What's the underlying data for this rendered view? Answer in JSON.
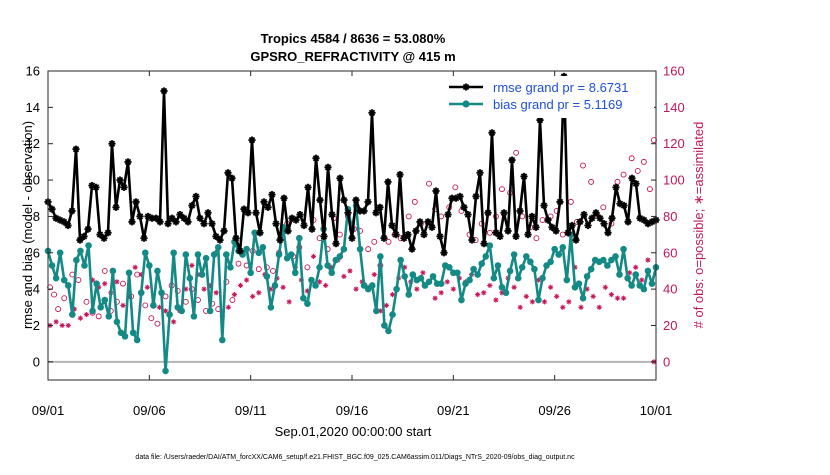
{
  "chart_data": {
    "type": "line",
    "title": [
      "Tropics 4584 / 8636 = 53.080%",
      "GPSRO_REFRACTIVITY @ 415 m"
    ],
    "xlabel": "Sep.01,2020 00:00:00 start",
    "ylabel_left": "rmse and bias (model - observation)",
    "ylabel_right": "# of obs: o=possible; ∗=assimilated",
    "footnote": "data file: /Users/raeder/DAI/ATM_forcXX/CAM6_setup/f.e21.FHIST_BGC.f09_025.CAM6assim.011/Diags_NTrS_2020-09/obs_diag_output.nc",
    "x_ticks": [
      "09/01",
      "09/06",
      "09/11",
      "09/16",
      "09/21",
      "09/26",
      "10/01"
    ],
    "y_left_ticks": [
      "0",
      "2",
      "4",
      "6",
      "8",
      "10",
      "12",
      "14",
      "16"
    ],
    "y_right_ticks": [
      "0",
      "20",
      "40",
      "60",
      "80",
      "100",
      "120",
      "140",
      "160"
    ],
    "ylim_left": [
      -1,
      16
    ],
    "ylim_right": [
      -10,
      160
    ],
    "xlim_days": [
      0,
      30
    ],
    "colors": {
      "rmse": "#000000",
      "bias": "#138a85",
      "obs": "#c8145a",
      "zero_line": "#b4b4b4",
      "legend_text": "#1f4fd8"
    },
    "legend": [
      {
        "label": "rmse grand pr = 8.6731",
        "series": "rmse"
      },
      {
        "label": "bias grand pr = 5.1169",
        "series": "bias"
      }
    ],
    "series": [
      {
        "name": "rmse",
        "marker": "star",
        "values": [
          8.8,
          8.4,
          7.9,
          7.8,
          7.7,
          7.5,
          8.3,
          11.7,
          6.7,
          6.9,
          7.3,
          9.7,
          9.6,
          7.0,
          6.8,
          7.1,
          12.0,
          8.5,
          10.0,
          9.6,
          11.0,
          7.7,
          8.8,
          8.0,
          6.8,
          8.0,
          7.9,
          7.9,
          7.7,
          14.9,
          7.6,
          7.9,
          7.7,
          8.1,
          7.9,
          7.7,
          8.6,
          9.1,
          7.9,
          7.6,
          8.2,
          7.6,
          6.9,
          6.7,
          7.2,
          10.4,
          10.1,
          6.8,
          6.1,
          8.4,
          8.2,
          12.2,
          8.2,
          7.1,
          8.8,
          8.5,
          9.2,
          7.6,
          6.7,
          9.0,
          7.2,
          7.9,
          7.8,
          8.1,
          7.5,
          9.6,
          7.3,
          11.2,
          8.9,
          6.9,
          10.7,
          8.1,
          6.5,
          10.1,
          8.9,
          8.2,
          6.8,
          8.9,
          8.3,
          8.3,
          8.8,
          13.7,
          8.2,
          8.5,
          6.8,
          9.9,
          7.5,
          7.0,
          10.3,
          6.8,
          7.0,
          6.2,
          7.2,
          7.7,
          7.0,
          7.7,
          7.4,
          9.4,
          6.9,
          6.0,
          8.1,
          9.0,
          9.0,
          9.1,
          8.5,
          8.1,
          6.7,
          9.1,
          10.4,
          6.5,
          8.2,
          12.6,
          7.1,
          6.9,
          8.2,
          7.2,
          11.1,
          6.9,
          8.3,
          10.2,
          7.0,
          8.0,
          7.4,
          13.3,
          8.6,
          7.8,
          7.4,
          7.2,
          8.8,
          15.7,
          7.1,
          7.5,
          6.7,
          7.7,
          8.1,
          7.5,
          7.9,
          8.2,
          7.9,
          7.6,
          7.1,
          7.9,
          9.6,
          8.7,
          8.6,
          7.7,
          10.1,
          9.8,
          7.9,
          7.8,
          7.6,
          7.7,
          7.8
        ]
      },
      {
        "name": "bias",
        "marker": "circle",
        "values": [
          6.1,
          5.3,
          4.6,
          6.0,
          4.5,
          4.2,
          2.6,
          5.6,
          6.1,
          5.3,
          6.4,
          2.8,
          4.3,
          3.0,
          3.4,
          2.5,
          5.0,
          2.2,
          1.6,
          1.4,
          4.9,
          1.6,
          1.2,
          3.8,
          6.0,
          5.3,
          3.1,
          5.0,
          3.8,
          -0.5,
          2.6,
          6.0,
          3.0,
          2.8,
          5.9,
          4.6,
          2.5,
          5.9,
          4.8,
          5.7,
          2.8,
          5.9,
          6.3,
          1.2,
          5.9,
          5.2,
          6.6,
          6.1,
          5.9,
          6.2,
          4.9,
          7.1,
          6.0,
          6.3,
          4.7,
          3.0,
          4.2,
          5.9,
          7.4,
          5.7,
          5.9,
          4.9,
          6.8,
          3.5,
          3.2,
          4.5,
          4.2,
          5.2,
          7.3,
          5.3,
          4.9,
          5.6,
          5.8,
          6.2,
          8.4,
          7.3,
          8.6,
          6.2,
          4.2,
          4.0,
          4.2,
          2.8,
          5.8,
          2.0,
          1.7,
          2.6,
          4.0,
          5.6,
          4.7,
          3.7,
          4.8,
          4.5,
          4.6,
          4.2,
          4.4,
          4.7,
          4.3,
          4.3,
          5.3,
          5.2,
          4.9,
          4.9,
          3.4,
          4.3,
          4.5,
          5.1,
          4.8,
          5.4,
          5.8,
          6.4,
          4.6,
          5.3,
          4.1,
          3.8,
          5.0,
          5.9,
          4.6,
          5.2,
          5.8,
          5.5,
          5.1,
          3.4,
          4.6,
          5.3,
          5.5,
          6.2,
          5.9,
          6.3,
          4.5,
          7.0,
          4.1,
          4.3,
          3.5,
          4.7,
          5.1,
          5.6,
          5.5,
          5.6,
          5.3,
          5.6,
          5.8,
          4.8,
          6.2,
          4.6,
          4.2,
          4.8,
          4.2,
          4.0,
          5.0,
          4.3,
          5.2
        ]
      },
      {
        "name": "possible",
        "marker": "open-circle",
        "axis": "right",
        "values": [
          [
            0.1,
            41
          ],
          [
            0.3,
            37
          ],
          [
            0.5,
            29
          ],
          [
            0.8,
            35
          ],
          [
            1.2,
            48
          ],
          [
            1.5,
            45
          ],
          [
            1.9,
            33
          ],
          [
            2.2,
            27
          ],
          [
            2.5,
            25
          ],
          [
            2.8,
            50
          ],
          [
            3.1,
            28
          ],
          [
            3.4,
            33
          ],
          [
            3.7,
            43
          ],
          [
            4.1,
            36
          ],
          [
            4.4,
            48
          ],
          [
            4.8,
            31
          ],
          [
            5.1,
            24
          ],
          [
            5.4,
            21
          ],
          [
            5.8,
            36
          ],
          [
            6.1,
            42
          ],
          [
            6.4,
            39
          ],
          [
            6.8,
            33
          ],
          [
            7.1,
            40
          ],
          [
            7.4,
            34
          ],
          [
            7.8,
            28
          ],
          [
            8.1,
            32
          ],
          [
            8.4,
            29
          ],
          [
            8.8,
            44
          ],
          [
            9.1,
            34
          ],
          [
            9.4,
            54
          ],
          [
            9.8,
            53
          ],
          [
            10.1,
            61
          ],
          [
            10.4,
            51
          ],
          [
            10.8,
            52
          ],
          [
            11.1,
            50
          ],
          [
            11.4,
            60
          ],
          [
            11.8,
            76
          ],
          [
            12.1,
            58
          ],
          [
            12.4,
            63
          ],
          [
            12.8,
            52
          ],
          [
            13.1,
            78
          ],
          [
            13.4,
            68
          ],
          [
            13.8,
            62
          ],
          [
            14.1,
            79
          ],
          [
            14.4,
            70
          ],
          [
            14.8,
            80
          ],
          [
            15.1,
            73
          ],
          [
            15.4,
            72
          ],
          [
            15.8,
            62
          ],
          [
            16.1,
            66
          ],
          [
            16.4,
            53
          ],
          [
            16.8,
            66
          ],
          [
            17.1,
            70
          ],
          [
            17.4,
            68
          ],
          [
            17.8,
            80
          ],
          [
            18.1,
            88
          ],
          [
            18.4,
            76
          ],
          [
            18.8,
            98
          ],
          [
            19.1,
            84
          ],
          [
            19.4,
            80
          ],
          [
            19.8,
            85
          ],
          [
            20.1,
            96
          ],
          [
            20.4,
            83
          ],
          [
            20.8,
            70
          ],
          [
            21.1,
            67
          ],
          [
            21.4,
            76
          ],
          [
            21.8,
            71
          ],
          [
            22.1,
            80
          ],
          [
            22.4,
            95
          ],
          [
            22.8,
            93
          ],
          [
            23.1,
            115
          ],
          [
            23.4,
            80
          ],
          [
            23.8,
            74
          ],
          [
            24.1,
            68
          ],
          [
            24.4,
            78
          ],
          [
            24.8,
            80
          ],
          [
            25.1,
            83
          ],
          [
            25.4,
            70
          ],
          [
            25.8,
            88
          ],
          [
            26.1,
            77
          ],
          [
            26.4,
            108
          ],
          [
            26.8,
            99
          ],
          [
            27.1,
            81
          ],
          [
            27.4,
            85
          ],
          [
            27.8,
            76
          ],
          [
            28.1,
            99
          ],
          [
            28.4,
            103
          ],
          [
            28.8,
            112
          ],
          [
            29.1,
            105
          ],
          [
            29.4,
            110
          ],
          [
            29.7,
            95
          ],
          [
            29.9,
            122
          ]
        ]
      },
      {
        "name": "assimilated",
        "marker": "asterisk",
        "axis": "right",
        "values": [
          [
            0.1,
            20
          ],
          [
            0.4,
            22
          ],
          [
            0.7,
            20
          ],
          [
            1.0,
            20
          ],
          [
            1.3,
            29
          ],
          [
            1.6,
            24
          ],
          [
            1.9,
            26
          ],
          [
            2.2,
            45
          ],
          [
            2.5,
            41
          ],
          [
            2.8,
            43
          ],
          [
            3.1,
            38
          ],
          [
            3.4,
            44
          ],
          [
            3.7,
            31
          ],
          [
            4.0,
            36
          ],
          [
            4.3,
            52
          ],
          [
            4.6,
            48
          ],
          [
            4.9,
            41
          ],
          [
            5.2,
            32
          ],
          [
            5.5,
            30
          ],
          [
            5.8,
            28
          ],
          [
            6.2,
            22
          ],
          [
            6.5,
            28
          ],
          [
            6.8,
            40
          ],
          [
            7.1,
            53
          ],
          [
            7.4,
            48
          ],
          [
            7.7,
            40
          ],
          [
            8.0,
            42
          ],
          [
            8.3,
            38
          ],
          [
            8.6,
            25
          ],
          [
            8.9,
            30
          ],
          [
            9.2,
            37
          ],
          [
            9.5,
            42
          ],
          [
            9.8,
            45
          ],
          [
            10.1,
            36
          ],
          [
            10.4,
            38
          ],
          [
            10.7,
            48
          ],
          [
            11.0,
            40
          ],
          [
            11.3,
            46
          ],
          [
            11.6,
            41
          ],
          [
            11.9,
            33
          ],
          [
            12.2,
            52
          ],
          [
            12.5,
            45
          ],
          [
            12.8,
            39
          ],
          [
            13.1,
            58
          ],
          [
            13.4,
            44
          ],
          [
            13.7,
            42
          ],
          [
            14.0,
            52
          ],
          [
            14.3,
            56
          ],
          [
            14.6,
            47
          ],
          [
            14.9,
            50
          ],
          [
            15.2,
            40
          ],
          [
            15.5,
            44
          ],
          [
            15.8,
            41
          ],
          [
            16.1,
            48
          ],
          [
            16.4,
            28
          ],
          [
            16.7,
            31
          ],
          [
            17.0,
            37
          ],
          [
            17.3,
            46
          ],
          [
            17.6,
            52
          ],
          [
            17.9,
            44
          ],
          [
            18.2,
            40
          ],
          [
            18.5,
            49
          ],
          [
            18.8,
            44
          ],
          [
            19.1,
            35
          ],
          [
            19.4,
            38
          ],
          [
            19.7,
            44
          ],
          [
            20.0,
            40
          ],
          [
            20.3,
            46
          ],
          [
            20.6,
            44
          ],
          [
            20.9,
            48
          ],
          [
            21.2,
            37
          ],
          [
            21.5,
            38
          ],
          [
            21.8,
            42
          ],
          [
            22.1,
            34
          ],
          [
            22.4,
            38
          ],
          [
            22.7,
            46
          ],
          [
            23.0,
            41
          ],
          [
            23.3,
            30
          ],
          [
            23.6,
            36
          ],
          [
            23.9,
            33
          ],
          [
            24.2,
            45
          ],
          [
            24.5,
            33
          ],
          [
            24.8,
            41
          ],
          [
            25.1,
            36
          ],
          [
            25.4,
            30
          ],
          [
            25.7,
            33
          ],
          [
            26.0,
            52
          ],
          [
            26.3,
            30
          ],
          [
            26.6,
            40
          ],
          [
            26.9,
            36
          ],
          [
            27.2,
            30
          ],
          [
            27.5,
            41
          ],
          [
            27.8,
            37
          ],
          [
            28.1,
            35
          ],
          [
            28.4,
            35
          ],
          [
            28.7,
            49
          ],
          [
            29.0,
            52
          ],
          [
            29.3,
            45
          ],
          [
            29.6,
            56
          ],
          [
            29.9,
            0
          ]
        ]
      }
    ]
  }
}
